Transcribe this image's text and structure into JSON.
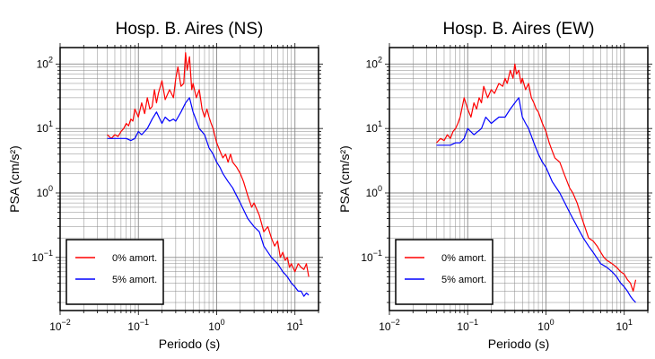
{
  "chart_data": [
    {
      "type": "line",
      "title": "Hosp. B. Aires (NS)",
      "xlabel": "Periodo (s)",
      "ylabel": "PSA (cm/s²)",
      "xscale": "log",
      "yscale": "log",
      "xlim": [
        0.01,
        20
      ],
      "ylim": [
        0.015,
        180
      ],
      "x_ticks": [
        {
          "base": "10",
          "exp": "−2",
          "value": 0.01
        },
        {
          "base": "10",
          "exp": "−1",
          "value": 0.1
        },
        {
          "base": "10",
          "exp": "0",
          "value": 1
        },
        {
          "base": "10",
          "exp": "1",
          "value": 10
        }
      ],
      "y_ticks": [
        {
          "base": "10",
          "exp": "−1",
          "value": 0.1
        },
        {
          "base": "10",
          "exp": "0",
          "value": 1
        },
        {
          "base": "10",
          "exp": "1",
          "value": 10
        },
        {
          "base": "10",
          "exp": "2",
          "value": 100
        }
      ],
      "grid": true,
      "legend_position": "bottom-left",
      "series": [
        {
          "name": "0% amort.",
          "color": "#ff0000",
          "x": [
            0.04,
            0.045,
            0.05,
            0.055,
            0.06,
            0.065,
            0.07,
            0.075,
            0.08,
            0.085,
            0.09,
            0.1,
            0.11,
            0.12,
            0.13,
            0.14,
            0.15,
            0.16,
            0.17,
            0.18,
            0.2,
            0.22,
            0.25,
            0.28,
            0.3,
            0.32,
            0.35,
            0.38,
            0.4,
            0.42,
            0.45,
            0.48,
            0.5,
            0.55,
            0.6,
            0.65,
            0.7,
            0.75,
            0.8,
            0.85,
            0.9,
            1.0,
            1.1,
            1.2,
            1.3,
            1.4,
            1.5,
            1.6,
            1.8,
            2.0,
            2.2,
            2.5,
            2.8,
            3.0,
            3.5,
            4.0,
            4.5,
            5.0,
            5.5,
            6.0,
            6.5,
            7.0,
            7.5,
            8.0,
            8.5,
            9.0,
            10,
            11,
            12,
            13,
            14,
            15
          ],
          "y": [
            8,
            7,
            8,
            7.5,
            9,
            10,
            12,
            11,
            14,
            13,
            20,
            15,
            25,
            17,
            30,
            20,
            22,
            40,
            25,
            35,
            55,
            28,
            40,
            30,
            60,
            90,
            45,
            50,
            150,
            80,
            130,
            40,
            50,
            30,
            40,
            20,
            15,
            20,
            15,
            12,
            10,
            6,
            4.5,
            3.5,
            4,
            3,
            4,
            3,
            2.5,
            2,
            1.5,
            0.9,
            0.6,
            0.7,
            0.45,
            0.25,
            0.3,
            0.2,
            0.15,
            0.18,
            0.1,
            0.12,
            0.09,
            0.1,
            0.07,
            0.08,
            0.06,
            0.08,
            0.07,
            0.065,
            0.08,
            0.05
          ]
        },
        {
          "name": "5% amort.",
          "color": "#0000ff",
          "x": [
            0.04,
            0.05,
            0.06,
            0.07,
            0.08,
            0.09,
            0.1,
            0.11,
            0.12,
            0.13,
            0.15,
            0.17,
            0.2,
            0.22,
            0.25,
            0.28,
            0.3,
            0.35,
            0.4,
            0.45,
            0.5,
            0.6,
            0.7,
            0.8,
            0.9,
            1.0,
            1.1,
            1.2,
            1.4,
            1.6,
            1.8,
            2.0,
            2.5,
            3.0,
            3.5,
            4.0,
            5.0,
            6.0,
            7.0,
            8.0,
            9.0,
            10,
            11,
            12,
            13,
            14,
            15
          ],
          "y": [
            7,
            7,
            7,
            7,
            6.5,
            7,
            9,
            8,
            9,
            10,
            14,
            18,
            12,
            15,
            13,
            14,
            13,
            18,
            25,
            30,
            18,
            10,
            8,
            5,
            4,
            3,
            2.5,
            2,
            1.5,
            1.2,
            0.9,
            0.7,
            0.4,
            0.3,
            0.25,
            0.15,
            0.1,
            0.08,
            0.06,
            0.05,
            0.04,
            0.035,
            0.03,
            0.03,
            0.025,
            0.028,
            0.026
          ]
        }
      ]
    },
    {
      "type": "line",
      "title": "Hosp. B. Aires (EW)",
      "xlabel": "Periodo (s)",
      "ylabel": "PSA (cm/s²)",
      "xscale": "log",
      "yscale": "log",
      "xlim": [
        0.01,
        20
      ],
      "ylim": [
        0.015,
        180
      ],
      "x_ticks": [
        {
          "base": "10",
          "exp": "−2",
          "value": 0.01
        },
        {
          "base": "10",
          "exp": "−1",
          "value": 0.1
        },
        {
          "base": "10",
          "exp": "0",
          "value": 1
        },
        {
          "base": "10",
          "exp": "1",
          "value": 10
        }
      ],
      "y_ticks": [
        {
          "base": "10",
          "exp": "−1",
          "value": 0.1
        },
        {
          "base": "10",
          "exp": "0",
          "value": 1
        },
        {
          "base": "10",
          "exp": "1",
          "value": 10
        },
        {
          "base": "10",
          "exp": "2",
          "value": 100
        }
      ],
      "grid": true,
      "legend_position": "bottom-left",
      "series": [
        {
          "name": "0% amort.",
          "color": "#ff0000",
          "x": [
            0.04,
            0.045,
            0.05,
            0.055,
            0.06,
            0.065,
            0.07,
            0.075,
            0.08,
            0.09,
            0.1,
            0.11,
            0.12,
            0.13,
            0.14,
            0.15,
            0.16,
            0.18,
            0.2,
            0.22,
            0.25,
            0.28,
            0.3,
            0.32,
            0.35,
            0.38,
            0.4,
            0.42,
            0.45,
            0.48,
            0.5,
            0.55,
            0.6,
            0.65,
            0.7,
            0.75,
            0.8,
            0.9,
            1.0,
            1.1,
            1.2,
            1.3,
            1.5,
            1.7,
            2.0,
            2.2,
            2.5,
            2.8,
            3.0,
            3.5,
            4.0,
            4.5,
            5.0,
            5.5,
            6.0,
            7.0,
            8.0,
            9.0,
            10,
            11,
            12,
            13,
            14
          ],
          "y": [
            6,
            7,
            6.5,
            8,
            7,
            9,
            10,
            12,
            15,
            30,
            20,
            15,
            25,
            20,
            30,
            25,
            45,
            30,
            40,
            35,
            50,
            45,
            60,
            50,
            80,
            60,
            100,
            70,
            80,
            50,
            60,
            40,
            50,
            30,
            25,
            20,
            18,
            12,
            9,
            6,
            4.5,
            3.5,
            3,
            2,
            1.2,
            1.0,
            0.7,
            0.45,
            0.35,
            0.2,
            0.18,
            0.15,
            0.12,
            0.1,
            0.09,
            0.08,
            0.07,
            0.06,
            0.055,
            0.045,
            0.04,
            0.03,
            0.045
          ]
        },
        {
          "name": "5% amort.",
          "color": "#0000ff",
          "x": [
            0.04,
            0.05,
            0.06,
            0.07,
            0.08,
            0.09,
            0.1,
            0.12,
            0.15,
            0.17,
            0.2,
            0.25,
            0.3,
            0.35,
            0.4,
            0.45,
            0.5,
            0.55,
            0.6,
            0.7,
            0.8,
            0.9,
            1.0,
            1.2,
            1.5,
            2.0,
            2.5,
            3.0,
            3.5,
            4.0,
            5.0,
            6.0,
            7.0,
            8.0,
            9.0,
            10,
            11,
            12,
            13,
            14
          ],
          "y": [
            5.5,
            5.5,
            5.5,
            6,
            6,
            7,
            10,
            8,
            10,
            15,
            12,
            15,
            15,
            20,
            25,
            30,
            15,
            12,
            10,
            6,
            4,
            3,
            2.5,
            1.5,
            1.0,
            0.5,
            0.3,
            0.2,
            0.15,
            0.12,
            0.08,
            0.07,
            0.06,
            0.05,
            0.04,
            0.035,
            0.03,
            0.025,
            0.022,
            0.02
          ]
        }
      ]
    }
  ]
}
